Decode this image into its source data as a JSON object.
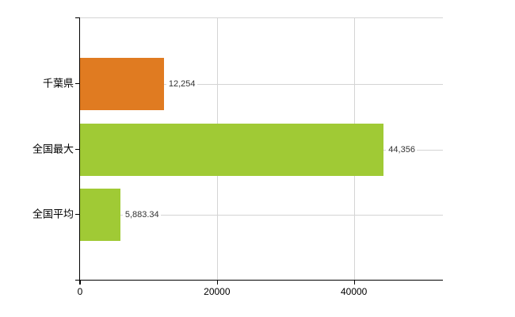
{
  "chart_data": {
    "type": "bar",
    "orientation": "horizontal",
    "title": "",
    "categories": [
      "千葉県",
      "全国最大",
      "全国平均"
    ],
    "values": [
      12254,
      44356,
      5883.34
    ],
    "value_labels": [
      "12,254",
      "44,356",
      "5,883.34"
    ],
    "series_colors": [
      "#e07b21",
      "#a0ca35",
      "#a0ca35"
    ],
    "xlim": [
      0,
      53000
    ],
    "x_ticks": [
      0,
      20000,
      40000
    ],
    "x_tick_labels": [
      "0",
      "20000",
      "40000"
    ],
    "grid": true,
    "legend": false,
    "background_color": "#ffffff",
    "axis_color": "#000000",
    "gridline_color": "#d4d4d4"
  }
}
